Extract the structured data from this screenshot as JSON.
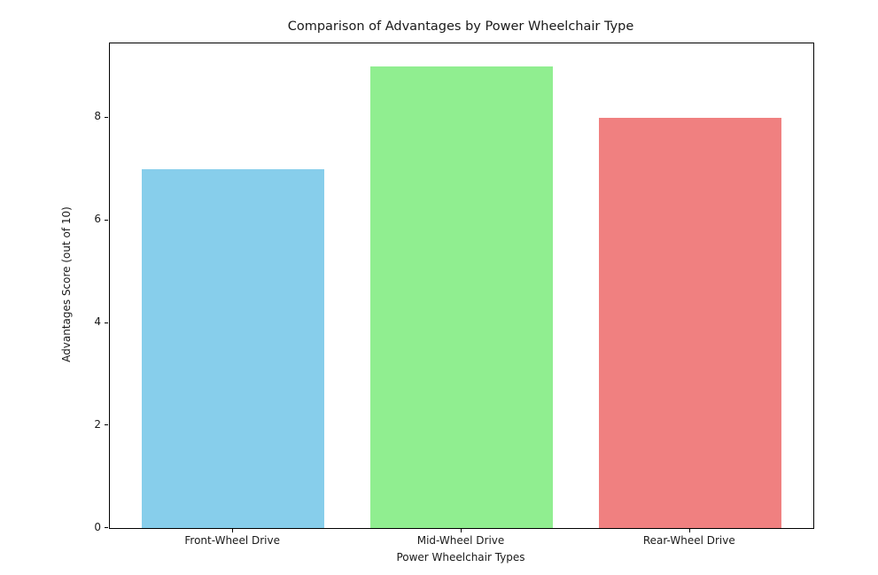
{
  "chart_data": {
    "type": "bar",
    "title": "Comparison of Advantages by Power Wheelchair Type",
    "xlabel": "Power Wheelchair Types",
    "ylabel": "Advantages Score (out of 10)",
    "categories": [
      "Front-Wheel Drive",
      "Mid-Wheel Drive",
      "Rear-Wheel Drive"
    ],
    "values": [
      7,
      9,
      8
    ],
    "colors": [
      "#87CEEB",
      "#90EE90",
      "#F08080"
    ],
    "yticks": [
      0,
      2,
      4,
      6,
      8
    ],
    "ylim": [
      0,
      9.45
    ],
    "xlim": [
      -0.54,
      2.54
    ],
    "bar_width": 0.8,
    "grid": false,
    "legend_position": "none",
    "background_color": "#ffffff",
    "spine_color": "#000000"
  }
}
